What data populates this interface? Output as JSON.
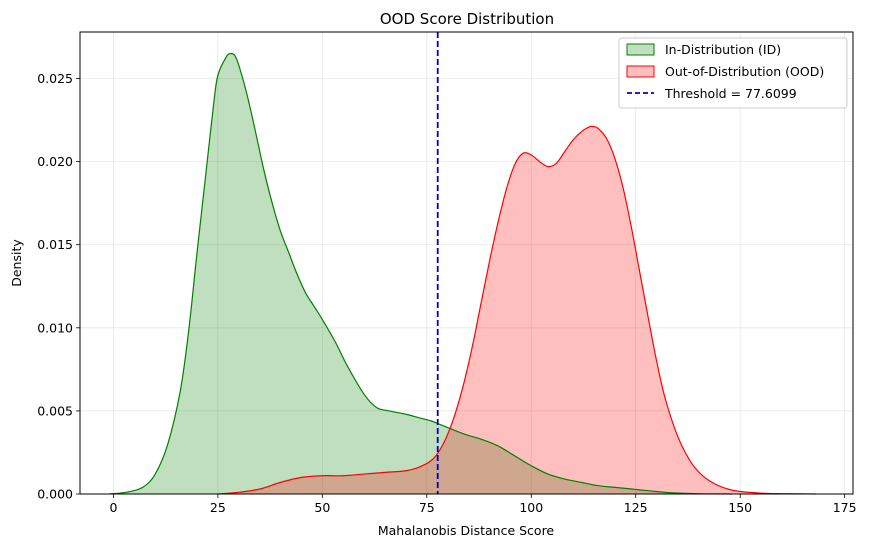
{
  "chart_data": {
    "type": "area",
    "title": "OOD Score Distribution",
    "xlabel": "Mahalanobis Distance Score",
    "ylabel": "Density",
    "xlim": [
      -8,
      177
    ],
    "ylim": [
      0,
      0.0278
    ],
    "xticks": [
      0,
      25,
      50,
      75,
      100,
      125,
      150,
      175
    ],
    "yticks": [
      0.0,
      0.005,
      0.01,
      0.015,
      0.02,
      0.025
    ],
    "ytick_labels": [
      "0.000",
      "0.005",
      "0.010",
      "0.015",
      "0.020",
      "0.025"
    ],
    "grid": true,
    "legend_position": "top-right",
    "series": [
      {
        "name": "In-Distribution (ID)",
        "kind": "kde-fill",
        "line_color": "#008000",
        "fill_color": "#008000",
        "fill_opacity": 0.25,
        "x": [
          -1,
          3,
          7,
          10,
          13,
          16,
          18,
          20,
          22,
          24,
          25,
          27,
          28,
          29,
          30,
          32,
          34,
          36,
          38,
          40,
          42,
          44,
          46,
          48,
          50,
          53,
          56,
          60,
          63,
          66,
          70,
          73,
          76,
          78,
          80,
          84,
          88,
          92,
          96,
          100,
          104,
          108,
          112,
          116,
          120,
          124,
          128,
          132,
          136,
          140,
          144,
          148
        ],
        "y": [
          0.0,
          0.0001,
          0.0004,
          0.0012,
          0.003,
          0.0062,
          0.0098,
          0.0145,
          0.019,
          0.0235,
          0.0252,
          0.0263,
          0.0265,
          0.0264,
          0.0258,
          0.024,
          0.0218,
          0.0195,
          0.0175,
          0.0158,
          0.0145,
          0.0132,
          0.0121,
          0.0113,
          0.0105,
          0.0092,
          0.0077,
          0.006,
          0.0052,
          0.005,
          0.0048,
          0.0046,
          0.0044,
          0.0042,
          0.004,
          0.0036,
          0.0033,
          0.0029,
          0.0023,
          0.0017,
          0.0012,
          0.0009,
          0.0007,
          0.0005,
          0.0004,
          0.0003,
          0.0002,
          0.0001,
          5e-05,
          2e-05,
          1e-05,
          0.0
        ]
      },
      {
        "name": "Out-of-Distribution (OOD)",
        "kind": "kde-fill",
        "line_color": "#ff0000",
        "fill_color": "#ff0000",
        "fill_opacity": 0.25,
        "x": [
          25,
          30,
          35,
          40,
          45,
          50,
          55,
          60,
          65,
          70,
          73,
          76,
          78,
          80,
          82,
          84,
          86,
          88,
          90,
          92,
          94,
          96,
          98,
          100,
          102,
          104,
          106,
          108,
          110,
          112,
          114,
          115,
          116,
          118,
          120,
          122,
          124,
          126,
          128,
          130,
          132,
          135,
          138,
          141,
          144,
          147,
          150,
          155,
          160,
          165,
          168
        ],
        "y": [
          0.0,
          0.0001,
          0.0003,
          0.0007,
          0.001,
          0.0011,
          0.0011,
          0.0012,
          0.0013,
          0.0014,
          0.0016,
          0.002,
          0.0026,
          0.0036,
          0.005,
          0.0068,
          0.009,
          0.0115,
          0.014,
          0.0163,
          0.0183,
          0.0198,
          0.0205,
          0.0204,
          0.02,
          0.0197,
          0.0199,
          0.0206,
          0.0213,
          0.0218,
          0.0221,
          0.0221,
          0.022,
          0.0214,
          0.0202,
          0.0184,
          0.016,
          0.0133,
          0.0106,
          0.008,
          0.0058,
          0.0035,
          0.002,
          0.0011,
          0.0006,
          0.0003,
          0.00015,
          5e-05,
          2e-05,
          1e-05,
          0.0
        ]
      },
      {
        "name": "Threshold = 77.6099",
        "kind": "vline",
        "x": 77.6099,
        "line_color": "#0000cc",
        "dash": true
      }
    ]
  }
}
